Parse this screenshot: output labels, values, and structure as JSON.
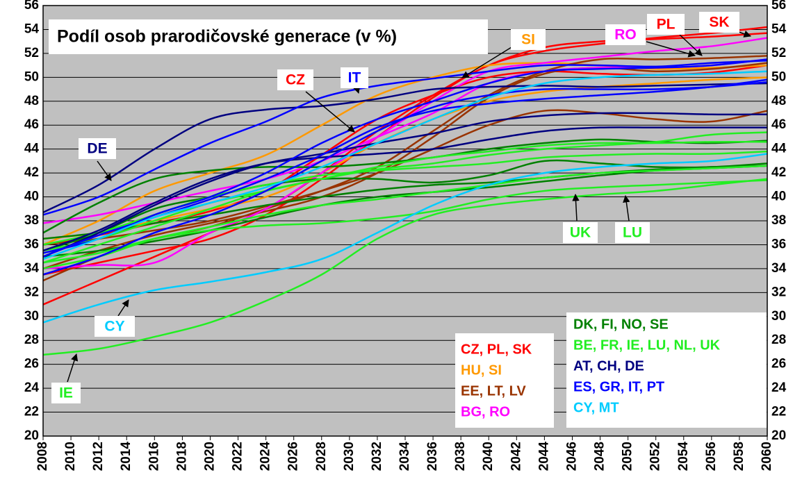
{
  "chart_data": {
    "type": "line",
    "title": "Podíl osob prarodičovské generace (v %)",
    "x": [
      2008,
      2012,
      2016,
      2020,
      2024,
      2028,
      2032,
      2036,
      2040,
      2044,
      2048,
      2052,
      2056,
      2060
    ],
    "xlim": [
      2008,
      2060
    ],
    "xticks": [
      2008,
      2010,
      2012,
      2014,
      2016,
      2018,
      2020,
      2022,
      2024,
      2026,
      2028,
      2030,
      2032,
      2034,
      2036,
      2038,
      2040,
      2042,
      2044,
      2046,
      2048,
      2050,
      2052,
      2054,
      2056,
      2058,
      2060
    ],
    "ylim": [
      20,
      56
    ],
    "yticks": [
      20,
      22,
      24,
      26,
      28,
      30,
      32,
      34,
      36,
      38,
      40,
      42,
      44,
      46,
      48,
      50,
      52,
      54,
      56
    ],
    "grid": true,
    "series": [
      {
        "name": "CZ, PL, SK",
        "color": "#ff0000",
        "lines": [
          [
            36,
            36.8,
            37.8,
            38.8,
            40.5,
            43.5,
            46.5,
            48.5,
            50,
            50.5,
            50.3,
            50.2,
            50.4,
            51
          ],
          [
            31,
            33,
            35,
            37,
            39,
            42,
            45.5,
            48.5,
            51,
            52.5,
            53,
            53.2,
            53.4,
            53.7
          ],
          [
            33.5,
            34.5,
            35.5,
            36.5,
            38.5,
            41.5,
            45,
            48.3,
            51,
            52.2,
            52.8,
            53.3,
            53.7,
            54.2
          ]
        ]
      },
      {
        "name": "HU, SI",
        "color": "#ff9900",
        "lines": [
          [
            36,
            38,
            40.5,
            42,
            43.5,
            46,
            48.5,
            50,
            51,
            51.2,
            51,
            50.7,
            50.8,
            51
          ],
          [
            36.5,
            37,
            38,
            39,
            40,
            42,
            44.5,
            46.5,
            48,
            48.8,
            49.2,
            49.5,
            49.8,
            50
          ]
        ]
      },
      {
        "name": "EE, LT, LV",
        "color": "#993300",
        "lines": [
          [
            36,
            36.5,
            37.2,
            38,
            39.2,
            40.5,
            42,
            44,
            46,
            47.2,
            47,
            46.5,
            46.3,
            47.2
          ],
          [
            33,
            35,
            36.5,
            37.5,
            39,
            40.5,
            42.5,
            45.5,
            48.5,
            50.5,
            51.5,
            51.5,
            51.6,
            51.8
          ],
          [
            34,
            35.5,
            36.8,
            37.8,
            38.8,
            40,
            42,
            45,
            48.3,
            50.3,
            50.8,
            50.5,
            50.7,
            51.2
          ]
        ]
      },
      {
        "name": "BG, RO",
        "color": "#ff00ff",
        "lines": [
          [
            37.8,
            38.5,
            39.5,
            40.5,
            41.5,
            43,
            45,
            47,
            49.5,
            50.5,
            50.8,
            50.8,
            51,
            51.5
          ],
          [
            34,
            34.3,
            34.5,
            37,
            39,
            42,
            45,
            48,
            50.5,
            51.2,
            51.7,
            52.2,
            52.6,
            53.3
          ]
        ]
      },
      {
        "name": "DK, FI, NO, SE",
        "color": "#008000",
        "lines": [
          [
            37,
            39.5,
            41.5,
            42.2,
            42.5,
            42.5,
            42.8,
            43.3,
            44,
            44.5,
            44.8,
            44.6,
            44.5,
            44.7
          ],
          [
            35.5,
            37,
            39,
            40,
            41,
            41.5,
            41.5,
            41.2,
            41.8,
            43,
            42.8,
            42.5,
            42.5,
            42.8
          ],
          [
            36.5,
            37,
            37.8,
            38.5,
            39.3,
            40,
            40.6,
            41,
            41.2,
            41.6,
            42,
            42.3,
            42.5,
            42.6
          ],
          [
            35,
            35.5,
            36.3,
            37.2,
            38.3,
            39.3,
            40,
            40.4,
            40.8,
            41.3,
            41.8,
            42.2,
            42.4,
            42.6
          ]
        ]
      },
      {
        "name": "BE, FR, IE, LU, NL, UK",
        "color": "#22ee22",
        "lines": [
          [
            26.8,
            27.3,
            28.3,
            29.5,
            31.3,
            33.5,
            36.5,
            38.5,
            39.3,
            39.8,
            40.2,
            40.5,
            41,
            41.5
          ],
          [
            34.5,
            35.3,
            36.5,
            37.2,
            37.6,
            37.8,
            38.2,
            38.8,
            39.8,
            40.5,
            40.8,
            41,
            41.2,
            41.4
          ],
          [
            34,
            35,
            36.5,
            37.5,
            38.5,
            39.3,
            39.8,
            40.4,
            41,
            41.6,
            42,
            42.2,
            42.4,
            42.6
          ],
          [
            35.5,
            36.5,
            38,
            39.5,
            40.5,
            41.5,
            42.3,
            42.8,
            43.5,
            44,
            44.3,
            44.6,
            45.2,
            45.4
          ],
          [
            36,
            37,
            38.5,
            40,
            41,
            41.8,
            42.2,
            42.5,
            42.8,
            43.3,
            43.5,
            43.6,
            43.6,
            43.8
          ],
          [
            34.5,
            36,
            37.5,
            39,
            40.5,
            41.5,
            42.5,
            43.3,
            43.8,
            44.3,
            44.5,
            44.5,
            44.6,
            44.6
          ]
        ]
      },
      {
        "name": "AT, CH, DE",
        "color": "#000080",
        "lines": [
          [
            38.7,
            41,
            44,
            46.5,
            47.3,
            47.6,
            48.2,
            49,
            49.2,
            49.3,
            49.2,
            49.3,
            49.4,
            49.5
          ],
          [
            35.5,
            37.2,
            39.5,
            41.5,
            42.8,
            43.3,
            43.6,
            44,
            44.8,
            45.5,
            45.8,
            45.8,
            45.8,
            45.8
          ],
          [
            35,
            37,
            39.3,
            41.3,
            42.8,
            43.6,
            44.5,
            45.3,
            46.3,
            46.8,
            47,
            47,
            46.9,
            46.9
          ]
        ]
      },
      {
        "name": "ES, GR, IT, PT",
        "color": "#0000ff",
        "lines": [
          [
            38.5,
            40,
            42.3,
            44.5,
            46.3,
            48.3,
            49.3,
            49.9,
            50.5,
            51,
            51,
            50.9,
            51.2,
            51.4
          ],
          [
            35.3,
            36.5,
            38.5,
            40,
            42,
            44.5,
            46.5,
            48,
            49.5,
            50.5,
            50.7,
            50.8,
            51,
            51.5
          ],
          [
            35,
            36.8,
            38.3,
            39.8,
            41.5,
            43.5,
            45.8,
            47.2,
            47.8,
            48.2,
            48.5,
            48.8,
            49.2,
            49.8
          ],
          [
            33.5,
            35,
            37,
            38.5,
            40.5,
            43,
            45.5,
            47.5,
            48.5,
            49,
            49,
            49,
            49.2,
            49.6
          ]
        ]
      },
      {
        "name": "CY, MT",
        "color": "#00ccff",
        "lines": [
          [
            29.5,
            31,
            32.2,
            32.9,
            33.7,
            34.8,
            37,
            39.3,
            41,
            42,
            42.5,
            42.8,
            43,
            43.6
          ],
          [
            34.8,
            36.5,
            38.3,
            39.5,
            40.8,
            42.5,
            44.5,
            46.5,
            48.3,
            49.5,
            50,
            50.2,
            50.3,
            50.5
          ]
        ]
      }
    ],
    "annotations": [
      {
        "text": "CZ",
        "color": "#ff0000"
      },
      {
        "text": "IT",
        "color": "#0000ff"
      },
      {
        "text": "SI",
        "color": "#ff9900"
      },
      {
        "text": "RO",
        "color": "#ff00ff"
      },
      {
        "text": "PL",
        "color": "#ff0000"
      },
      {
        "text": "SK",
        "color": "#ff0000"
      },
      {
        "text": "DE",
        "color": "#000080"
      },
      {
        "text": "CY",
        "color": "#00ccff"
      },
      {
        "text": "IE",
        "color": "#22ee22"
      },
      {
        "text": "UK",
        "color": "#22ee22"
      },
      {
        "text": "LU",
        "color": "#22ee22"
      }
    ]
  }
}
